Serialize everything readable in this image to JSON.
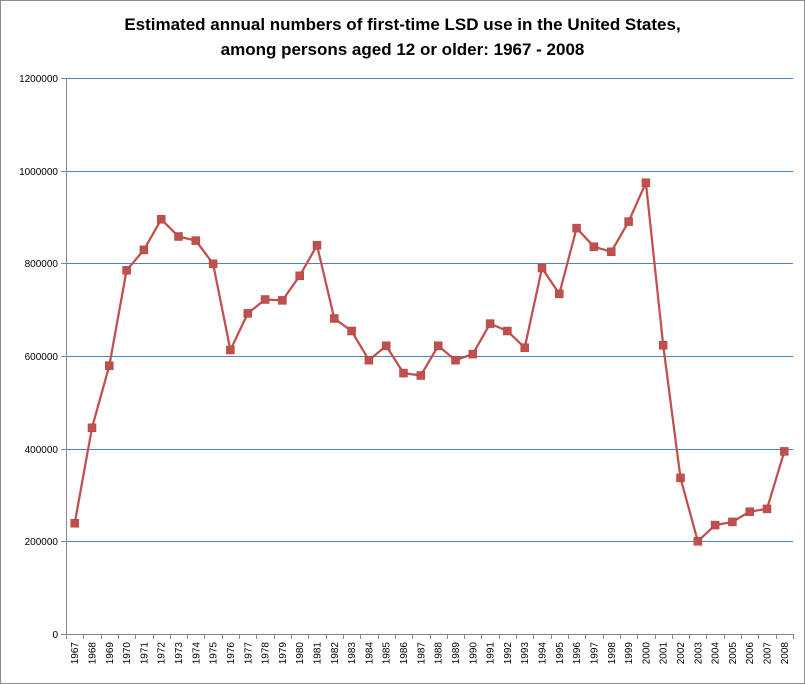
{
  "chart_data": {
    "type": "line",
    "title_line1": "Estimated annual numbers of first-time LSD use in the United States,",
    "title_line2": "among persons aged 12 or older: 1967 - 2008",
    "xlabel": "",
    "ylabel": "",
    "ylim": [
      0,
      1200000
    ],
    "yticks": [
      "0",
      "200000",
      "400000",
      "600000",
      "800000",
      "1000000",
      "1200000"
    ],
    "ytick_values": [
      0,
      200000,
      400000,
      600000,
      800000,
      1000000,
      1200000
    ],
    "grid": true,
    "legend": "none",
    "line_color": "#c0504d",
    "grid_color": "#4f81bd",
    "categories": [
      "1967",
      "1968",
      "1969",
      "1970",
      "1971",
      "1972",
      "1973",
      "1974",
      "1975",
      "1976",
      "1977",
      "1978",
      "1979",
      "1980",
      "1981",
      "1982",
      "1983",
      "1984",
      "1985",
      "1986",
      "1987",
      "1988",
      "1989",
      "1990",
      "1991",
      "1992",
      "1993",
      "1994",
      "1995",
      "1996",
      "1997",
      "1998",
      "1999",
      "2000",
      "2001",
      "2002",
      "2003",
      "2004",
      "2005",
      "2006",
      "2007",
      "2008"
    ],
    "values": [
      239000,
      445000,
      579000,
      785000,
      829000,
      895000,
      858000,
      849000,
      799000,
      613000,
      692000,
      722000,
      720000,
      773000,
      839000,
      681000,
      654000,
      591000,
      622000,
      563000,
      558000,
      622000,
      591000,
      604000,
      670000,
      654000,
      618000,
      790000,
      734000,
      876000,
      836000,
      825000,
      890000,
      974000,
      623000,
      337000,
      200000,
      235000,
      242000,
      264000,
      270000,
      394000
    ]
  }
}
